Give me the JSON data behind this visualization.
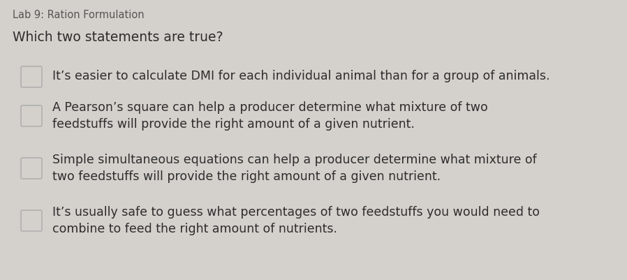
{
  "title": "Lab 9: Ration Formulation",
  "question": "Which two statements are true?",
  "options": [
    "It’s easier to calculate DMI for each individual animal than for a group of animals.",
    "A Pearson’s square can help a producer determine what mixture of two\nfeedstuffs will provide the right amount of a given nutrient.",
    "Simple simultaneous equations can help a producer determine what mixture of\ntwo feedstuffs will provide the right amount of a given nutrient.",
    "It’s usually safe to guess what percentages of two feedstuffs you would need to\ncombine to feed the right amount of nutrients."
  ],
  "bg_color": "#d4d1cc",
  "title_color": "#555555",
  "question_color": "#2d2d2d",
  "option_color": "#2d2d2d",
  "checkbox_edge_color": "#aaaaaa",
  "title_fontsize": 10.5,
  "question_fontsize": 13.5,
  "option_fontsize": 12.5
}
